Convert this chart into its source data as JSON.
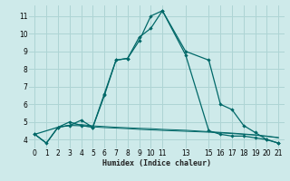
{
  "xlabel": "Humidex (Indice chaleur)",
  "bg_color": "#ceeaea",
  "grid_color": "#aed4d4",
  "line_color": "#006868",
  "line1_x": [
    0,
    1,
    2,
    3,
    4,
    5,
    6,
    7,
    8,
    9,
    10,
    11,
    13,
    15,
    16,
    17,
    18,
    19,
    20,
    21
  ],
  "line1_y": [
    4.3,
    3.8,
    4.7,
    4.8,
    5.1,
    4.7,
    6.5,
    8.5,
    8.6,
    9.6,
    11.0,
    11.3,
    9.0,
    8.5,
    6.0,
    5.7,
    4.8,
    4.4,
    4.0,
    3.8
  ],
  "line2_x": [
    0,
    2,
    3,
    4,
    5,
    6,
    7,
    8,
    9,
    10,
    11,
    13,
    15,
    16,
    17,
    18,
    19,
    20,
    21
  ],
  "line2_y": [
    4.3,
    4.7,
    5.0,
    4.8,
    4.7,
    6.6,
    8.5,
    8.6,
    9.8,
    10.3,
    11.3,
    8.8,
    4.5,
    4.3,
    4.2,
    4.2,
    4.1,
    4.0,
    3.8
  ],
  "line3_x": [
    0,
    1,
    2,
    3,
    4,
    5,
    6,
    7,
    8,
    9,
    10,
    11,
    13,
    15,
    16,
    17,
    18,
    19,
    20,
    21
  ],
  "line3_y": [
    4.3,
    3.8,
    4.7,
    4.8,
    4.78,
    4.72,
    4.68,
    4.65,
    4.62,
    4.58,
    4.55,
    4.52,
    4.47,
    4.42,
    4.38,
    4.34,
    4.3,
    4.25,
    4.18,
    4.1
  ],
  "line4_x": [
    0,
    1,
    2,
    3,
    4,
    5,
    6,
    7,
    8,
    9,
    10,
    11,
    13,
    15,
    16,
    17,
    18,
    19,
    20,
    21
  ],
  "line4_y": [
    4.3,
    3.8,
    4.7,
    4.82,
    4.85,
    4.78,
    4.74,
    4.7,
    4.67,
    4.64,
    4.62,
    4.58,
    4.53,
    4.45,
    4.41,
    4.37,
    4.32,
    4.27,
    4.2,
    4.12
  ],
  "xlim": [
    -0.5,
    21.5
  ],
  "ylim": [
    3.5,
    11.6
  ],
  "xticks": [
    0,
    1,
    2,
    3,
    4,
    5,
    6,
    7,
    8,
    9,
    10,
    11,
    13,
    15,
    16,
    17,
    18,
    19,
    20,
    21
  ],
  "yticks": [
    4,
    5,
    6,
    7,
    8,
    9,
    10,
    11
  ]
}
